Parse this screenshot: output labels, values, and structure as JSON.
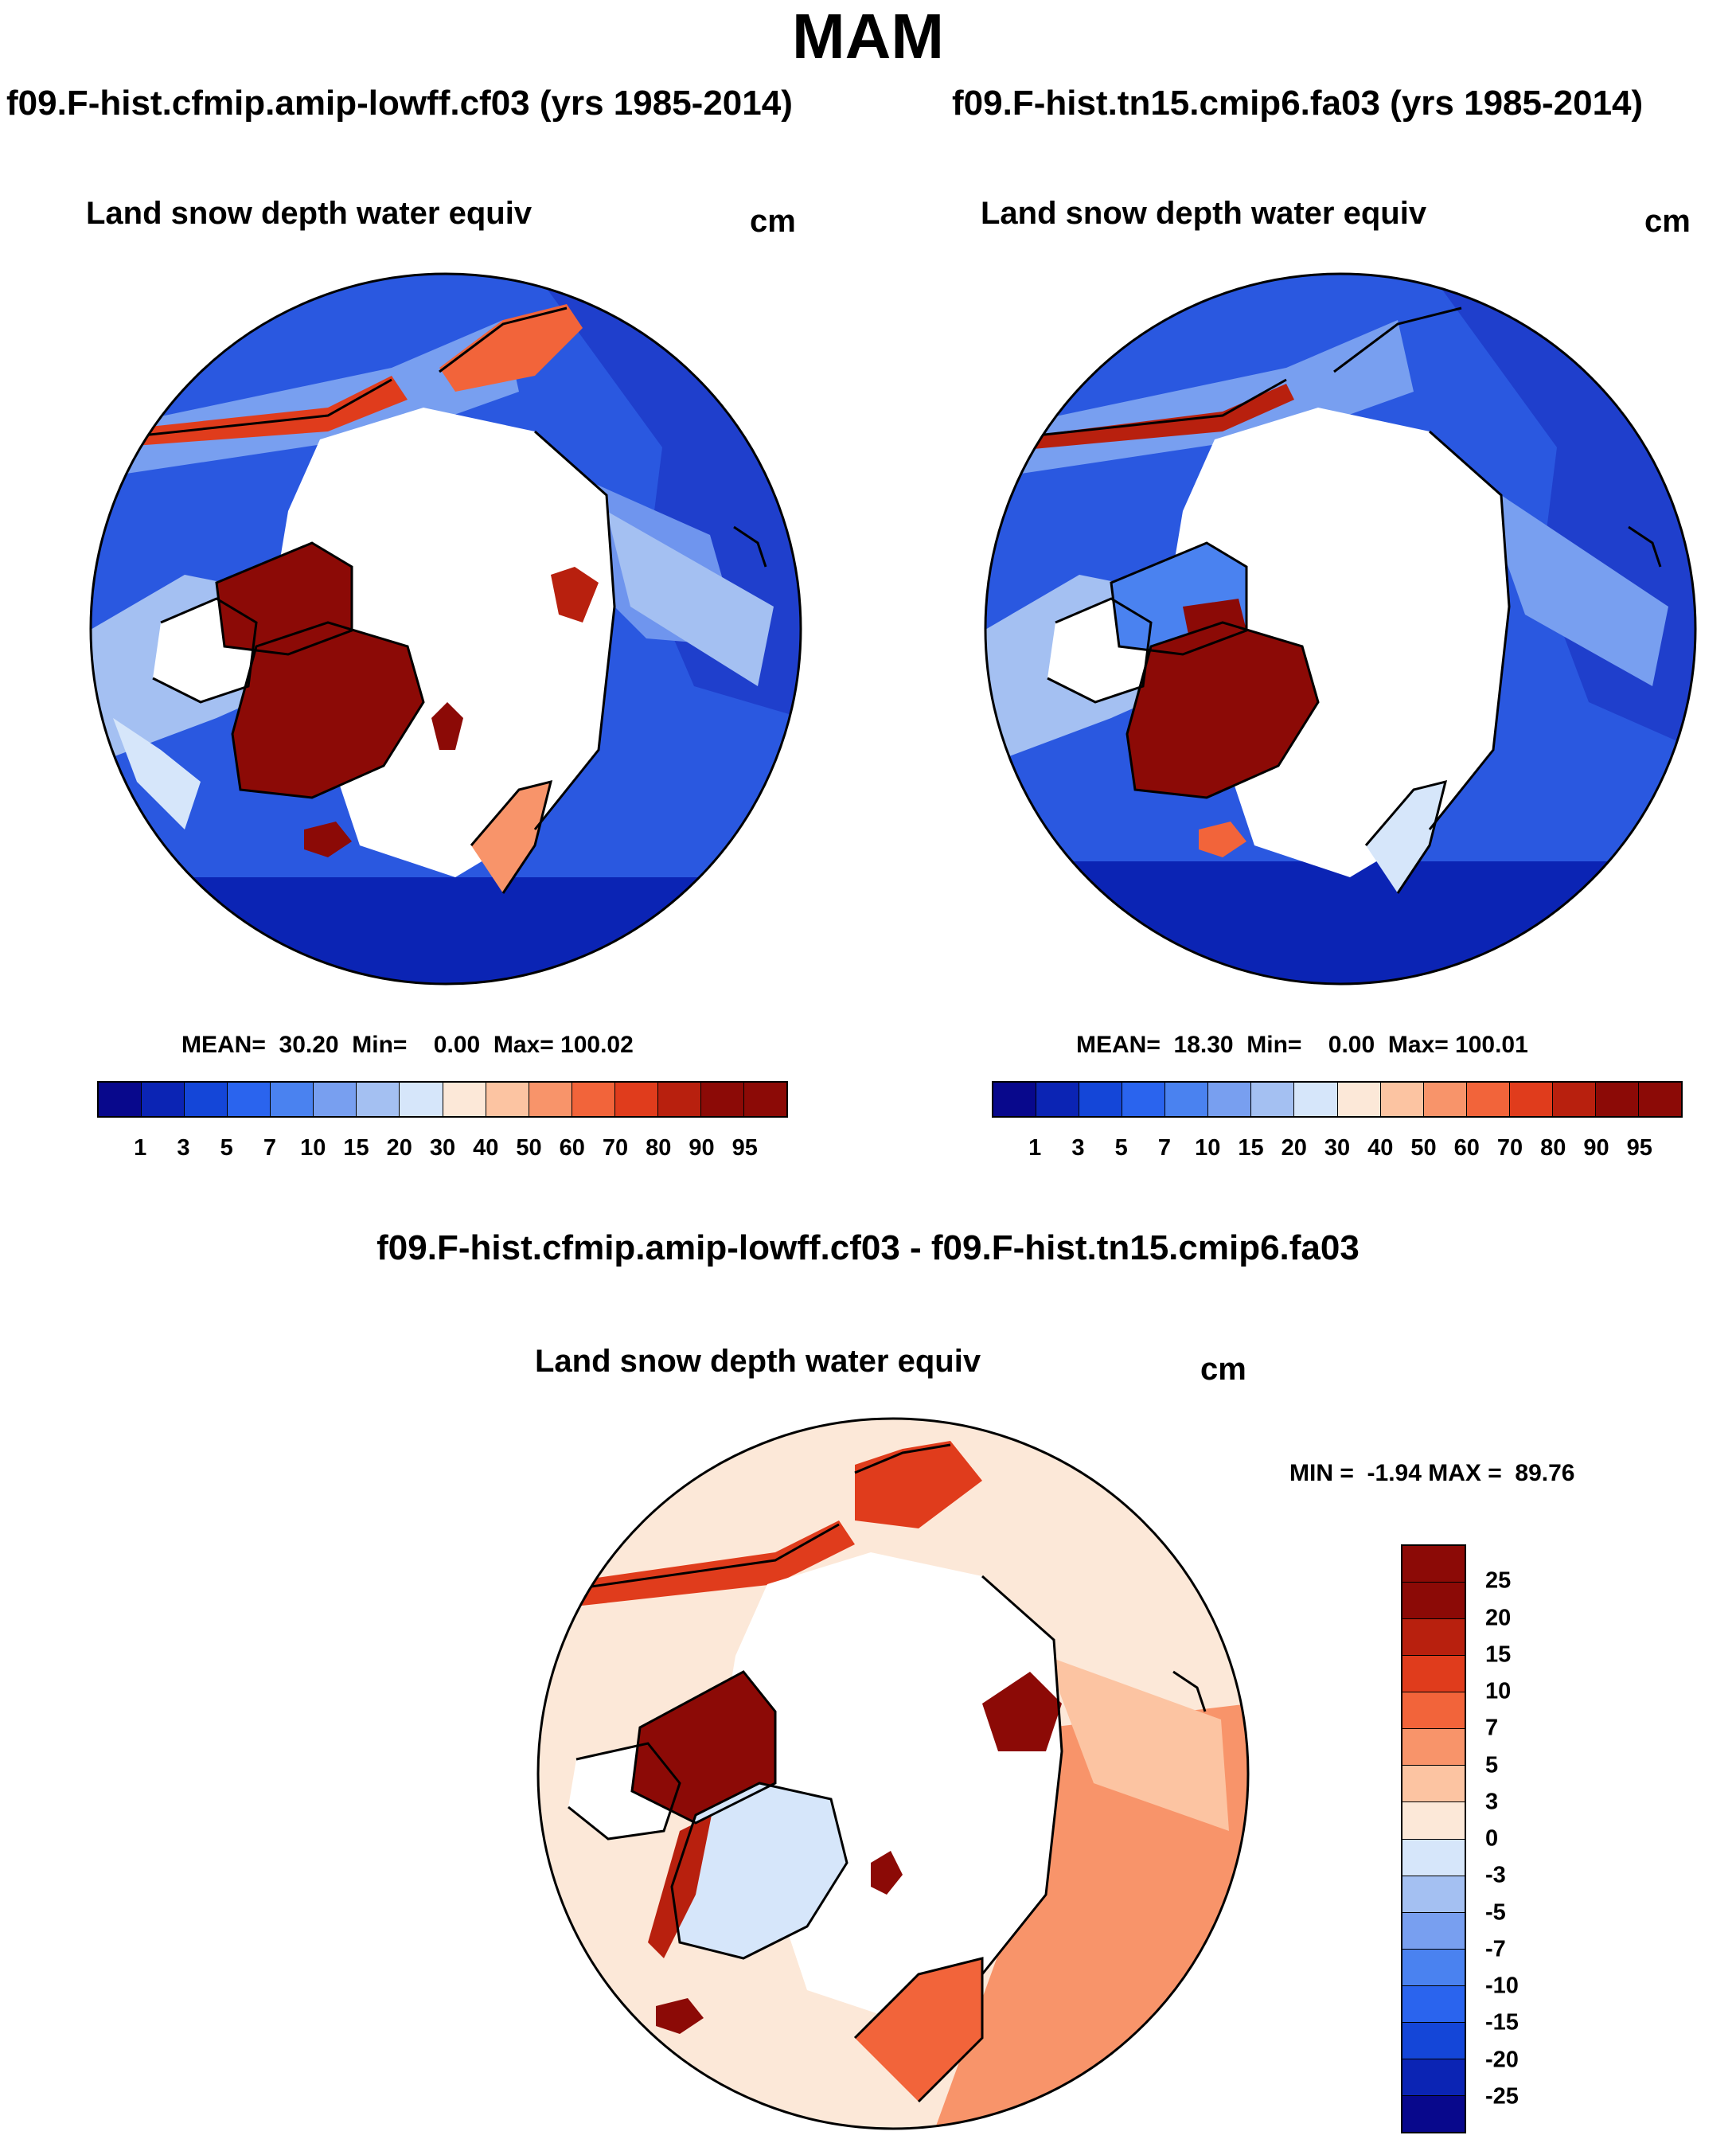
{
  "figure": {
    "season_title": "MAM"
  },
  "panel_left": {
    "case_title": "f09.F-hist.cfmip.amip-lowff.cf03 (yrs 1985-2014)",
    "variable": "Land snow depth water equiv",
    "units": "cm",
    "stats": "MEAN=  30.20  Min=    0.00  Max= 100.02",
    "mean": 30.2,
    "min": 0.0,
    "max": 100.02
  },
  "panel_right": {
    "case_title": "f09.F-hist.tn15.cmip6.fa03 (yrs 1985-2014)",
    "variable": "Land snow depth water equiv",
    "units": "cm",
    "stats": "MEAN=  18.30  Min=    0.00  Max= 100.01",
    "mean": 18.3,
    "min": 0.0,
    "max": 100.01
  },
  "panel_diff": {
    "title": "f09.F-hist.cfmip.amip-lowff.cf03 - f09.F-hist.tn15.cmip6.fa03",
    "variable": "Land snow depth water equiv",
    "units": "cm",
    "stats": "MIN =  -1.94 MAX =  89.76",
    "min": -1.94,
    "max": 89.76
  },
  "colorbar_abs": {
    "labels": [
      "1",
      "3",
      "5",
      "7",
      "10",
      "15",
      "20",
      "30",
      "40",
      "50",
      "60",
      "70",
      "80",
      "90",
      "95"
    ],
    "colors": [
      "#08088c",
      "#0b24b4",
      "#1446d8",
      "#2a64ee",
      "#4a82f0",
      "#789ff0",
      "#a4c0f2",
      "#d6e6fa",
      "#fce8d8",
      "#fcc4a2",
      "#f8946a",
      "#f2643a",
      "#e03c1c",
      "#b8200e",
      "#8c0a06"
    ]
  },
  "colorbar_diff": {
    "labels": [
      "25",
      "20",
      "15",
      "10",
      "7",
      "5",
      "3",
      "0",
      "-3",
      "-5",
      "-7",
      "-10",
      "-15",
      "-20",
      "-25"
    ],
    "colors": [
      "#8c0a06",
      "#b8200e",
      "#e03c1c",
      "#f2643a",
      "#f8946a",
      "#fcc4a2",
      "#fce8d8",
      "#d6e6fa",
      "#a4c0f2",
      "#789ff0",
      "#4a82f0",
      "#2a64ee",
      "#1446d8",
      "#0b24b4",
      "#08088c"
    ]
  }
}
